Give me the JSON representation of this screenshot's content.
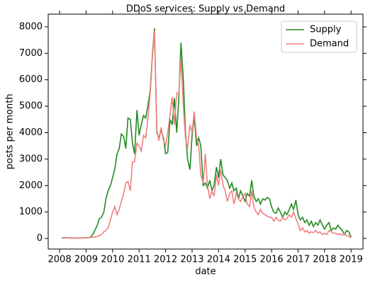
{
  "chart_data": {
    "type": "line",
    "title": "DDoS services: Supply vs Demand",
    "x_label": "date",
    "y_label": "posts per month",
    "x": [
      2008.08,
      2008.17,
      2008.25,
      2008.33,
      2008.42,
      2008.5,
      2008.58,
      2008.67,
      2008.75,
      2008.83,
      2008.92,
      2009,
      2009.08,
      2009.17,
      2009.25,
      2009.33,
      2009.42,
      2009.5,
      2009.58,
      2009.67,
      2009.75,
      2009.83,
      2009.92,
      2010,
      2010.08,
      2010.17,
      2010.25,
      2010.33,
      2010.42,
      2010.5,
      2010.58,
      2010.67,
      2010.75,
      2010.83,
      2010.92,
      2011,
      2011.08,
      2011.17,
      2011.25,
      2011.33,
      2011.42,
      2011.5,
      2011.58,
      2011.67,
      2011.75,
      2011.83,
      2011.92,
      2012,
      2012.08,
      2012.17,
      2012.25,
      2012.33,
      2012.42,
      2012.5,
      2012.58,
      2012.67,
      2012.75,
      2012.83,
      2012.92,
      2013,
      2013.08,
      2013.17,
      2013.25,
      2013.33,
      2013.42,
      2013.5,
      2013.58,
      2013.67,
      2013.75,
      2013.83,
      2013.92,
      2014,
      2014.08,
      2014.17,
      2014.25,
      2014.33,
      2014.42,
      2014.5,
      2014.58,
      2014.67,
      2014.75,
      2014.83,
      2014.92,
      2015,
      2015.08,
      2015.17,
      2015.25,
      2015.33,
      2015.42,
      2015.5,
      2015.58,
      2015.67,
      2015.75,
      2015.83,
      2015.92,
      2016,
      2016.08,
      2016.17,
      2016.25,
      2016.33,
      2016.42,
      2016.5,
      2016.58,
      2016.67,
      2016.75,
      2016.83,
      2016.92,
      2017,
      2017.08,
      2017.17,
      2017.25,
      2017.33,
      2017.42,
      2017.5,
      2017.58,
      2017.67,
      2017.75,
      2017.83,
      2017.92,
      2018,
      2018.08,
      2018.17,
      2018.25,
      2018.33,
      2018.42,
      2018.5,
      2018.58,
      2018.67,
      2018.75,
      2018.83,
      2018.92,
      2019
    ],
    "series": [
      {
        "name": "Supply",
        "color": "#228b22",
        "values": [
          20,
          30,
          30,
          20,
          20,
          20,
          20,
          10,
          20,
          20,
          30,
          20,
          30,
          50,
          150,
          300,
          500,
          750,
          800,
          1000,
          1500,
          1800,
          2000,
          2300,
          2600,
          3200,
          3400,
          3950,
          3850,
          3400,
          4550,
          4500,
          3600,
          3200,
          4850,
          3900,
          4300,
          4650,
          4550,
          5000,
          5600,
          6900,
          7950,
          4000,
          3800,
          4100,
          3800,
          3200,
          3250,
          4500,
          4300,
          5300,
          4000,
          5300,
          7400,
          6000,
          4000,
          3000,
          2600,
          3900,
          4600,
          3500,
          3800,
          3500,
          2000,
          2100,
          1900,
          2200,
          1800,
          2000,
          2700,
          2300,
          3000,
          2400,
          2300,
          2200,
          1900,
          2100,
          1800,
          1900,
          1500,
          1800,
          1600,
          1400,
          1700,
          1600,
          2200,
          1600,
          1400,
          1500,
          1300,
          1500,
          1450,
          1550,
          1500,
          1200,
          1000,
          950,
          1150,
          1000,
          800,
          1000,
          900,
          1100,
          1300,
          1100,
          1450,
          900,
          700,
          800,
          600,
          700,
          500,
          650,
          450,
          600,
          500,
          700,
          500,
          350,
          500,
          600,
          300,
          400,
          350,
          500,
          400,
          300,
          150,
          300,
          250,
          50
        ]
      },
      {
        "name": "Demand",
        "color": "#f08080",
        "values": [
          10,
          20,
          20,
          20,
          10,
          10,
          10,
          10,
          10,
          20,
          20,
          30,
          30,
          40,
          50,
          50,
          80,
          100,
          150,
          250,
          300,
          400,
          700,
          1000,
          1200,
          900,
          1100,
          1400,
          1700,
          2100,
          2150,
          1800,
          2900,
          2900,
          3600,
          3500,
          3300,
          3900,
          3800,
          4500,
          5500,
          6800,
          7850,
          4100,
          3700,
          4200,
          3700,
          3500,
          4000,
          4700,
          5350,
          4300,
          5500,
          5500,
          6800,
          5000,
          3800,
          3400,
          4300,
          4000,
          4800,
          3800,
          3500,
          2400,
          2100,
          3200,
          2000,
          1500,
          1800,
          1600,
          2400,
          2000,
          2600,
          2000,
          1800,
          1400,
          1700,
          1800,
          1300,
          1700,
          1500,
          1400,
          1600,
          1700,
          1300,
          1200,
          1800,
          1200,
          1000,
          900,
          1100,
          950,
          900,
          850,
          800,
          800,
          650,
          800,
          700,
          650,
          800,
          700,
          750,
          900,
          800,
          1000,
          750,
          550,
          300,
          400,
          250,
          300,
          200,
          250,
          220,
          300,
          200,
          250,
          150,
          200,
          150,
          300,
          250,
          200,
          200,
          150,
          180,
          120,
          180,
          100,
          80,
          30
        ]
      }
    ],
    "xlim": [
      2007.57,
      2019.45
    ],
    "xticks": [
      2008,
      2009,
      2010,
      2011,
      2012,
      2013,
      2014,
      2015,
      2016,
      2017,
      2018,
      2019
    ],
    "ylim": [
      -400,
      8480
    ],
    "yticks": [
      0,
      1000,
      2000,
      3000,
      4000,
      5000,
      6000,
      7000,
      8000
    ],
    "legend": "upper right"
  }
}
